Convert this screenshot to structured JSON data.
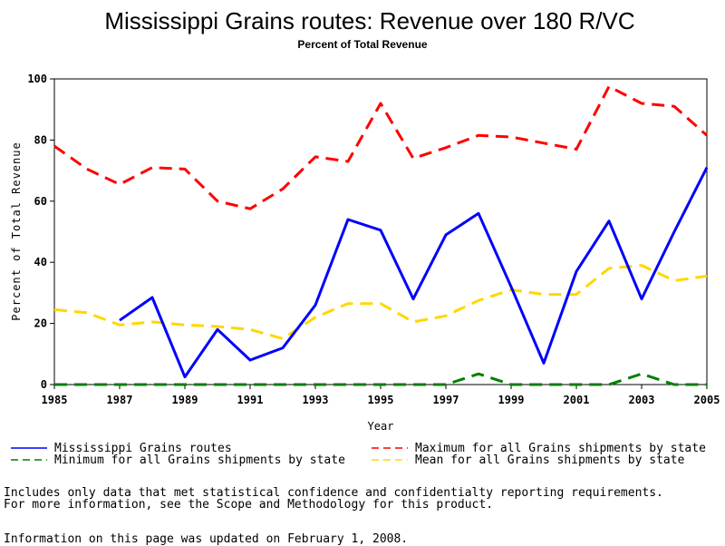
{
  "chart_data": {
    "type": "line",
    "title": "Mississippi Grains routes: Revenue over 180 R/VC",
    "subtitle": "Percent of Total Revenue",
    "xlabel": "Year",
    "ylabel": "Percent of Total Revenue",
    "xlim": [
      1985,
      2005
    ],
    "ylim": [
      0,
      100
    ],
    "x_ticks": [
      "1985",
      "1987",
      "1989",
      "1991",
      "1993",
      "1995",
      "1997",
      "1999",
      "2001",
      "2003",
      "2005"
    ],
    "y_ticks": [
      "0",
      "20",
      "40",
      "60",
      "80",
      "100"
    ],
    "grid": false,
    "legend_position": "bottom",
    "x": [
      1985,
      1986,
      1987,
      1988,
      1989,
      1990,
      1991,
      1992,
      1993,
      1994,
      1995,
      1996,
      1997,
      1998,
      1999,
      2000,
      2001,
      2002,
      2003,
      2004,
      2005
    ],
    "series": [
      {
        "name": "Mississippi Grains routes",
        "color": "#0000ff",
        "style": "solid",
        "values": [
          null,
          null,
          21,
          28.5,
          2.5,
          18,
          8,
          12,
          26,
          54,
          50.5,
          28,
          49,
          56,
          32,
          7,
          37,
          53.5,
          28,
          50,
          71
        ]
      },
      {
        "name": "Maximum for all Grains shipments by state",
        "color": "#ff0000",
        "style": "dashed",
        "values": [
          78,
          70.5,
          65.5,
          71,
          70.5,
          60,
          57.5,
          64,
          74.5,
          73,
          92,
          74,
          77.5,
          81.5,
          81,
          79,
          77,
          97.5,
          92,
          91,
          81.5
        ]
      },
      {
        "name": "Minimum for all Grains shipments by state",
        "color": "#008000",
        "style": "dashed",
        "values": [
          0,
          0,
          0,
          0,
          0,
          0,
          0,
          0,
          0,
          0,
          0,
          0,
          0,
          3.5,
          0,
          0,
          0,
          0,
          3.5,
          0,
          0
        ]
      },
      {
        "name": "Mean for all Grains shipments by state",
        "color": "#ffd700",
        "style": "dashed",
        "values": [
          24.5,
          23.5,
          19.5,
          20.5,
          19.5,
          19,
          18,
          15,
          22,
          26.5,
          26.5,
          20.5,
          22.5,
          27.5,
          31,
          29.5,
          29.5,
          38,
          39,
          34,
          35.5
        ]
      }
    ]
  },
  "notes": {
    "line1": "Includes only data that met statistical confidence and confidentialty reporting requirements.",
    "line2": "For more information, see the Scope and Methodology for this product.",
    "updated": "Information on this page was updated on February 1, 2008."
  }
}
